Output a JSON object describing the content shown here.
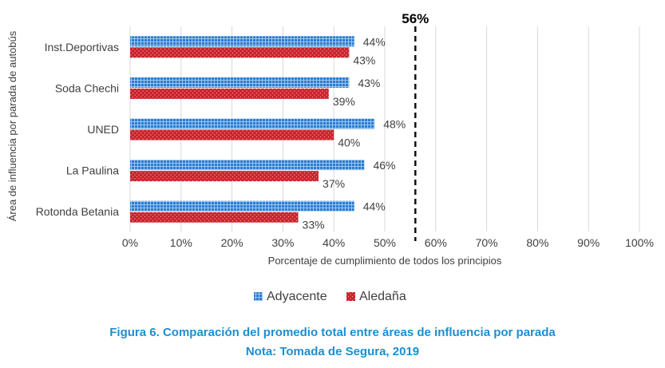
{
  "chart_data": {
    "type": "bar",
    "orientation": "horizontal",
    "title": "",
    "ylabel": "Área de influencia por parada de autobús",
    "xlabel": "Porcentaje de cumplimiento de todos los principios",
    "categories": [
      "Inst.Deportivas",
      "Soda Chechi",
      "UNED",
      "La Paulina",
      "Rotonda Betania"
    ],
    "series": [
      {
        "name": "Adyacente",
        "color": "#2a7bd0",
        "values": [
          44,
          43,
          48,
          46,
          44
        ],
        "labels": [
          "44%",
          "43%",
          "48%",
          "46%",
          "44%"
        ]
      },
      {
        "name": "Aledaña",
        "color": "#c8232c",
        "values": [
          43,
          39,
          40,
          37,
          33
        ],
        "labels": [
          "43%",
          "39%",
          "40%",
          "37%",
          "33%"
        ]
      }
    ],
    "xlim": [
      0,
      100
    ],
    "xticks": [
      0,
      10,
      20,
      30,
      40,
      50,
      60,
      70,
      80,
      90,
      100
    ],
    "xtick_labels": [
      "0%",
      "10%",
      "20%",
      "30%",
      "40%",
      "50%",
      "60%",
      "70%",
      "80%",
      "90%",
      "100%"
    ],
    "grid": "vertical",
    "legend_position": "bottom",
    "reference_line": {
      "value": 56,
      "label": "56%",
      "style": "dashed",
      "color": "#111111"
    }
  },
  "caption": {
    "line1": "Figura 6. Comparación del promedio total entre áreas de influencia por parada",
    "line2": "Nota: Tomada de Segura, 2019"
  },
  "colors": {
    "grid": "#d9d9d9",
    "axis_text": "#404040",
    "caption": "#1b8fd1"
  }
}
